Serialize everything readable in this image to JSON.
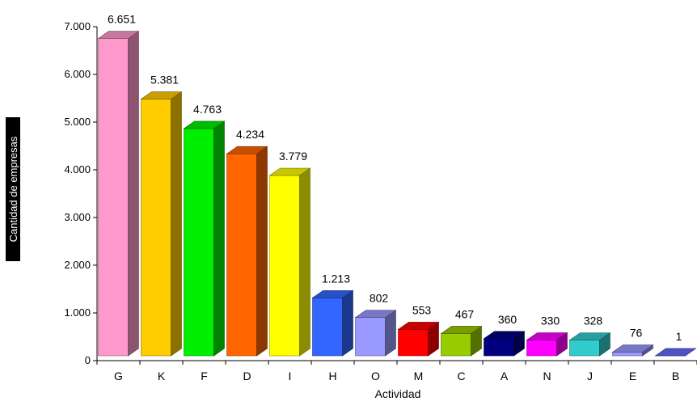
{
  "chart_data": {
    "type": "bar",
    "title": "",
    "xlabel": "Actividad",
    "ylabel": "Cantidad de empresas",
    "ylim": [
      0,
      7000
    ],
    "yticks": [
      "0",
      "1.000",
      "2.000",
      "3.000",
      "4.000",
      "5.000",
      "6.000",
      "7.000"
    ],
    "categories": [
      "G",
      "K",
      "F",
      "D",
      "I",
      "H",
      "O",
      "M",
      "C",
      "A",
      "N",
      "J",
      "E",
      "B"
    ],
    "values": [
      6651,
      5381,
      4763,
      4234,
      3779,
      1213,
      802,
      553,
      467,
      360,
      330,
      328,
      76,
      1
    ],
    "value_labels": [
      "6.651",
      "5.381",
      "4.763",
      "4.234",
      "3.779",
      "1.213",
      "802",
      "553",
      "467",
      "360",
      "330",
      "328",
      "76",
      "1"
    ],
    "colors": [
      "#ff99cc",
      "#ffcc00",
      "#00ee00",
      "#ff6600",
      "#ffff00",
      "#3366ff",
      "#9999ff",
      "#ff0000",
      "#99cc00",
      "#000080",
      "#ff00ff",
      "#33cccc",
      "#9999ff",
      "#6666ff"
    ],
    "grid": false,
    "legend": "none",
    "style": "3d-bars"
  }
}
